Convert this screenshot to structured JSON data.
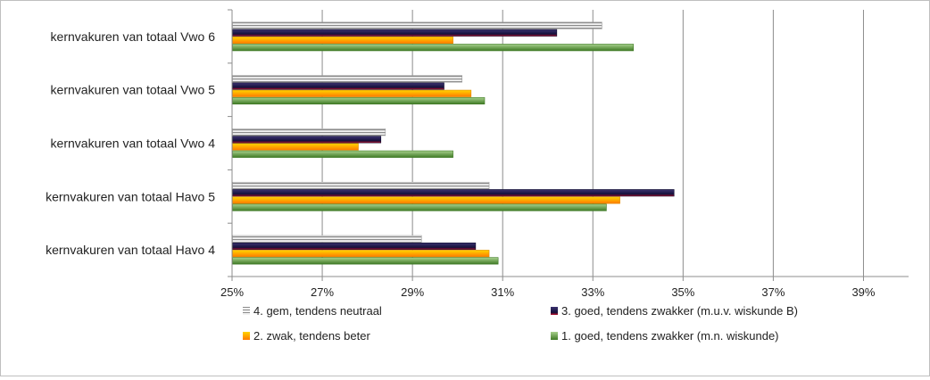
{
  "chart_data": {
    "type": "bar",
    "orientation": "horizontal",
    "categories": [
      "kernvakuren van totaal Vwo 6",
      "kernvakuren van totaal Vwo 5",
      "kernvakuren van totaal Vwo 4",
      "kernvakuren van totaal Havo 5",
      "kernvakuren van totaal Havo 4"
    ],
    "series": [
      {
        "name": "4. gem, tendens neutraal",
        "color": "#a6a6a6",
        "values": [
          33.2,
          30.1,
          28.4,
          30.7,
          29.2
        ]
      },
      {
        "name": "3. goed, tendens zwakker (m.u.v. wiskunde B)",
        "color": "#1f1a4d",
        "values": [
          32.2,
          29.7,
          28.3,
          34.8,
          30.4
        ]
      },
      {
        "name": "2. zwak, tendens beter",
        "color": "#ffa500",
        "values": [
          29.9,
          30.3,
          27.8,
          33.6,
          30.7
        ]
      },
      {
        "name": "1. goed, tendens zwakker (m.n. wiskunde)",
        "color": "#6aa84f",
        "values": [
          33.9,
          30.6,
          29.9,
          33.3,
          30.9
        ]
      }
    ],
    "xlim": [
      25,
      40
    ],
    "xticks": [
      "25%",
      "27%",
      "29%",
      "31%",
      "33%",
      "35%",
      "37%",
      "39%"
    ],
    "xtick_values": [
      25,
      27,
      29,
      31,
      33,
      35,
      37,
      39
    ],
    "grid": "vertical",
    "legend": "bottom"
  }
}
